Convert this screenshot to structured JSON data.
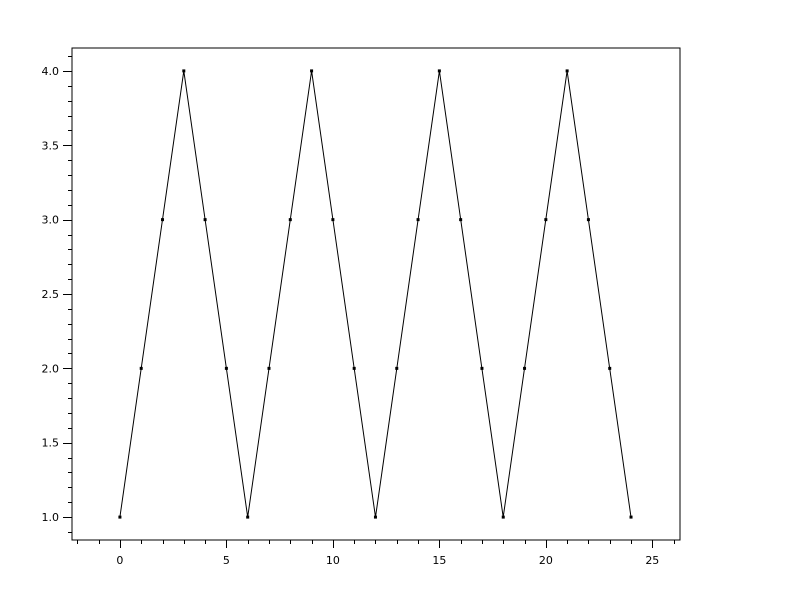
{
  "chart_data": {
    "type": "line",
    "title": "",
    "xlabel": "",
    "ylabel": "",
    "x": [
      0,
      1,
      2,
      3,
      4,
      5,
      6,
      7,
      8,
      9,
      10,
      11,
      12,
      13,
      14,
      15,
      16,
      17,
      18,
      19,
      20,
      21,
      22,
      23,
      24
    ],
    "series": [
      {
        "values": [
          1,
          2,
          3,
          4,
          3,
          2,
          1,
          2,
          3,
          4,
          3,
          2,
          1,
          2,
          3,
          4,
          3,
          2,
          1,
          2,
          3,
          4,
          3,
          2,
          1
        ],
        "color": "#000000",
        "marker": "dot"
      }
    ],
    "xlim": [
      -2.25,
      26.3
    ],
    "ylim": [
      0.846,
      4.154
    ],
    "xticks": [
      0,
      5,
      10,
      15,
      20,
      25
    ],
    "xtick_labels": [
      "0",
      "5",
      "10",
      "15",
      "20",
      "25"
    ],
    "yticks": [
      1.0,
      1.5,
      2.0,
      2.5,
      3.0,
      3.5,
      4.0
    ],
    "ytick_labels": [
      "1.0",
      "1.5",
      "2.0",
      "2.5",
      "3.0",
      "3.5",
      "4.0"
    ],
    "grid": false,
    "legend": "none"
  }
}
